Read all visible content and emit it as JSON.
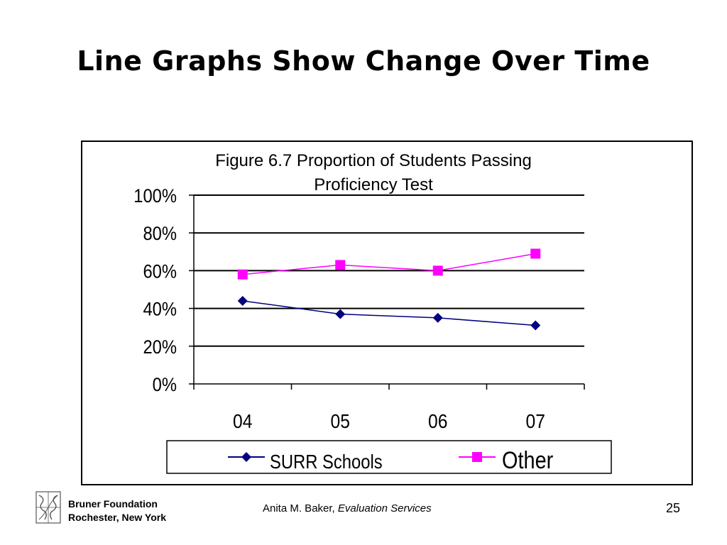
{
  "slide": {
    "title": "Line Graphs Show Change Over Time",
    "footer": {
      "org_line1": "Bruner Foundation",
      "org_line2": "Rochester, New York",
      "author": "Anita M. Baker,",
      "author_italic": "Evaluation Services",
      "page_number": "25"
    }
  },
  "chart_data": {
    "type": "line",
    "title_line1": "Figure 6.7  Proportion of Students Passing",
    "title_line2": "Proficiency Test",
    "categories": [
      "04",
      "05",
      "06",
      "07"
    ],
    "y_ticks": [
      "0%",
      "20%",
      "40%",
      "60%",
      "80%",
      "100%"
    ],
    "ylim": [
      0,
      100
    ],
    "grid": true,
    "legend_position": "bottom",
    "series": [
      {
        "name": "SURR Schools",
        "values": [
          44,
          37,
          35,
          31
        ],
        "color": "#000080",
        "marker": "diamond"
      },
      {
        "name": "Other",
        "values": [
          58,
          63,
          60,
          69
        ],
        "color": "#ff00ff",
        "marker": "square"
      }
    ]
  }
}
